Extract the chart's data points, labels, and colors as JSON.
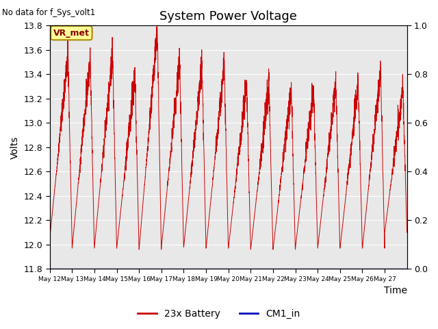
{
  "title": "System Power Voltage",
  "top_left_text": "No data for f_Sys_volt1",
  "ylabel_left": "Volts",
  "xlabel": "Time",
  "ylim_left": [
    11.8,
    13.8
  ],
  "ylim_right": [
    0.0,
    1.0
  ],
  "yticks_left": [
    11.8,
    12.0,
    12.2,
    12.4,
    12.6,
    12.8,
    13.0,
    13.2,
    13.4,
    13.6,
    13.8
  ],
  "yticks_right": [
    0.0,
    0.2,
    0.4,
    0.6,
    0.8,
    1.0
  ],
  "x_dates": [
    "May 12",
    "May 13",
    "May 14",
    "May 15",
    "May 16",
    "May 17",
    "May 18",
    "May 19",
    "May 20",
    "May 21",
    "May 22",
    "May 23",
    "May 24",
    "May 25",
    "May 26",
    "May 27"
  ],
  "battery_color": "#cc0000",
  "cm1_color": "#0000bb",
  "bg_color": "#e8e8e8",
  "annotation_text": "VR_met",
  "annotation_bg": "#ffff99",
  "annotation_border": "#aa8800",
  "legend_labels": [
    "23x Battery",
    "CM1_in"
  ],
  "n_days": 16,
  "peaks": [
    13.55,
    13.55,
    13.58,
    13.4,
    13.75,
    13.5,
    13.48,
    13.48,
    13.32,
    13.32,
    13.29,
    13.29,
    13.33,
    13.34,
    13.45,
    13.29
  ],
  "mins": [
    12.05,
    11.97,
    11.98,
    11.97,
    11.96,
    11.98,
    11.98,
    11.97,
    11.97,
    11.96,
    11.96,
    11.97,
    11.97,
    11.97,
    11.97,
    12.1
  ]
}
